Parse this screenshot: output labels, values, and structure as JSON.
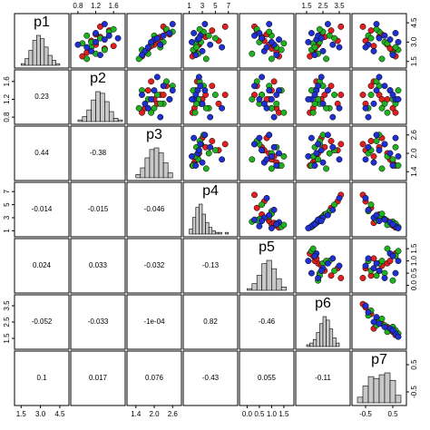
{
  "chart_data": {
    "type": "pairs",
    "variables": [
      {
        "name": "p1",
        "lim": [
          1.2,
          5.0
        ],
        "ticks": [
          1.5,
          {
            "value": 3,
            "label": "3.0"
          },
          4.5
        ],
        "hist": {
          "bins": [
            1.5,
            1.8,
            2.1,
            2.4,
            2.7,
            3.0,
            3.3,
            3.6,
            3.9,
            4.2,
            4.5
          ],
          "counts": [
            1,
            4,
            9,
            15,
            18,
            16,
            11,
            6,
            3,
            1
          ]
        }
      },
      {
        "name": "p2",
        "lim": [
          0.7,
          1.8
        ],
        "ticks": [
          0.8,
          1.2,
          1.6
        ],
        "hist": {
          "bins": [
            0.8,
            0.9,
            1.0,
            1.1,
            1.2,
            1.3,
            1.4,
            1.5,
            1.6,
            1.7,
            1.8
          ],
          "counts": [
            1,
            3,
            7,
            13,
            18,
            17,
            12,
            6,
            2,
            1
          ]
        }
      },
      {
        "name": "p3",
        "lim": [
          1.2,
          2.8
        ],
        "ticks": [
          1.4,
          {
            "value": 2,
            "label": "2.0"
          },
          2.6
        ],
        "hist": {
          "bins": [
            1.4,
            1.55,
            1.7,
            1.85,
            2.0,
            2.15,
            2.3,
            2.45,
            2.6
          ],
          "counts": [
            2,
            6,
            12,
            17,
            18,
            15,
            9,
            3
          ]
        }
      },
      {
        "name": "p4",
        "lim": [
          0.5,
          8
        ],
        "ticks": [
          1,
          3,
          5,
          7
        ],
        "hist": {
          "bins": [
            1,
            1.5,
            2,
            2.5,
            3,
            3.5,
            4,
            4.5,
            5,
            5.5,
            6,
            6.5,
            7
          ],
          "counts": [
            3,
            10,
            16,
            18,
            12,
            7,
            4,
            2,
            1,
            1,
            0,
            1
          ]
        }
      },
      {
        "name": "p5",
        "lim": [
          -0.2,
          1.8
        ],
        "ticks": [
          {
            "value": 0,
            "label": "0.0"
          },
          0.5,
          {
            "value": 1,
            "label": "1.0"
          },
          1.5
        ],
        "hist": {
          "bins": [
            0,
            0.2,
            0.4,
            0.6,
            0.8,
            1.0,
            1.2,
            1.4,
            1.6
          ],
          "counts": [
            1,
            4,
            9,
            16,
            18,
            13,
            7,
            2
          ]
        }
      },
      {
        "name": "p6",
        "lim": [
          1.0,
          4.0
        ],
        "ticks": [
          1.5,
          2.5,
          3.5
        ],
        "hist": {
          "bins": [
            1.5,
            1.7,
            1.9,
            2.1,
            2.3,
            2.5,
            2.7,
            2.9,
            3.1,
            3.3,
            3.5
          ],
          "counts": [
            1,
            2,
            4,
            8,
            13,
            17,
            15,
            10,
            5,
            2
          ]
        }
      },
      {
        "name": "p7",
        "lim": [
          -0.9,
          0.9
        ],
        "ticks": [
          -0.5,
          0.5
        ],
        "hist": {
          "bins": [
            -0.8,
            -0.6,
            -0.4,
            -0.2,
            0,
            0.2,
            0.4,
            0.6,
            0.8
          ],
          "counts": [
            3,
            9,
            14,
            13,
            15,
            16,
            12,
            4
          ]
        }
      }
    ],
    "correlations": [
      [
        0.23
      ],
      [
        0.44,
        -0.38
      ],
      [
        -0.014,
        -0.015,
        -0.046
      ],
      [
        0.024,
        0.033,
        -0.032,
        -0.13
      ],
      [
        -0.052,
        -0.033,
        -0.0001,
        0.82,
        -0.46
      ],
      [
        0.1,
        0.017,
        0.076,
        -0.43,
        0.055,
        -0.11
      ]
    ],
    "correlation_labels": [
      [
        "0.23"
      ],
      [
        "0.44",
        "-0.38"
      ],
      [
        "-0.014",
        "-0.015",
        "-0.046"
      ],
      [
        "0.024",
        "0.033",
        "-0.032",
        "-0.13"
      ],
      [
        "-0.052",
        "-0.033",
        "-1e-04",
        "0.82",
        "-0.46"
      ],
      [
        "0.1",
        "0.017",
        "0.076",
        "-0.43",
        "0.055",
        "-0.11"
      ]
    ],
    "series": [
      {
        "color": "#e02020",
        "points": [
          [
            2.8,
            1.2,
            2.0,
            2.5,
            0.9,
            2.2,
            0.3
          ],
          [
            3.4,
            1.3,
            2.2,
            3.5,
            0.6,
            2.6,
            0.0
          ],
          [
            2.2,
            1.0,
            1.7,
            1.8,
            1.2,
            1.9,
            0.5
          ],
          [
            3.9,
            1.5,
            2.4,
            4.5,
            0.4,
            3.0,
            -0.3
          ],
          [
            2.5,
            1.4,
            1.8,
            2.0,
            1.0,
            2.0,
            0.4
          ],
          [
            3.1,
            1.1,
            2.1,
            5.5,
            0.7,
            3.4,
            -0.5
          ],
          [
            1.9,
            0.9,
            1.6,
            1.5,
            1.3,
            1.7,
            0.6
          ],
          [
            3.6,
            1.2,
            2.5,
            3.0,
            0.8,
            2.4,
            0.1
          ],
          [
            2.7,
            1.6,
            1.9,
            2.2,
            1.1,
            2.1,
            -0.2
          ],
          [
            4.2,
            1.3,
            2.3,
            6.5,
            0.3,
            3.6,
            -0.6
          ]
        ]
      },
      {
        "color": "#20b020",
        "points": [
          [
            3.0,
            1.1,
            2.3,
            2.8,
            0.5,
            2.3,
            0.2
          ],
          [
            2.4,
            1.4,
            1.6,
            1.6,
            1.4,
            1.8,
            0.7
          ],
          [
            3.5,
            1.0,
            2.0,
            4.0,
            1.0,
            2.9,
            -0.4
          ],
          [
            2.1,
            1.2,
            1.8,
            2.4,
            0.2,
            2.2,
            0.5
          ],
          [
            3.8,
            1.5,
            2.6,
            3.2,
            0.9,
            2.5,
            0.0
          ],
          [
            2.9,
            0.9,
            1.9,
            1.9,
            1.5,
            1.9,
            0.3
          ],
          [
            3.3,
            1.3,
            2.1,
            5.0,
            0.6,
            3.2,
            -0.3
          ],
          [
            2.6,
            1.1,
            2.2,
            2.1,
            1.2,
            2.0,
            0.6
          ],
          [
            4.0,
            1.6,
            2.4,
            2.6,
            0.4,
            2.3,
            -0.1
          ],
          [
            1.7,
            1.0,
            1.5,
            3.6,
            1.0,
            2.7,
            0.1
          ]
        ]
      },
      {
        "color": "#2030d0",
        "points": [
          [
            3.2,
            1.4,
            2.0,
            2.3,
            1.3,
            2.1,
            0.4
          ],
          [
            2.3,
            1.1,
            1.7,
            3.0,
            0.7,
            2.5,
            -0.2
          ],
          [
            3.7,
            1.2,
            2.5,
            1.7,
            0.5,
            1.8,
            0.6
          ],
          [
            2.8,
            0.8,
            2.2,
            4.2,
            1.1,
            3.1,
            -0.4
          ],
          [
            3.5,
            1.5,
            2.3,
            2.7,
            0.3,
            2.2,
            0.2
          ],
          [
            2.0,
            1.3,
            1.6,
            2.0,
            1.2,
            2.0,
            0.5
          ],
          [
            4.4,
            1.4,
            2.6,
            3.4,
            0.9,
            2.8,
            -0.1
          ],
          [
            2.6,
            1.0,
            1.8,
            6.0,
            0.8,
            3.5,
            -0.5
          ],
          [
            3.0,
            1.2,
            1.9,
            1.4,
            1.0,
            1.6,
            0.7
          ],
          [
            3.3,
            1.7,
            2.1,
            2.5,
            0.6,
            2.4,
            0.0
          ]
        ]
      }
    ]
  }
}
